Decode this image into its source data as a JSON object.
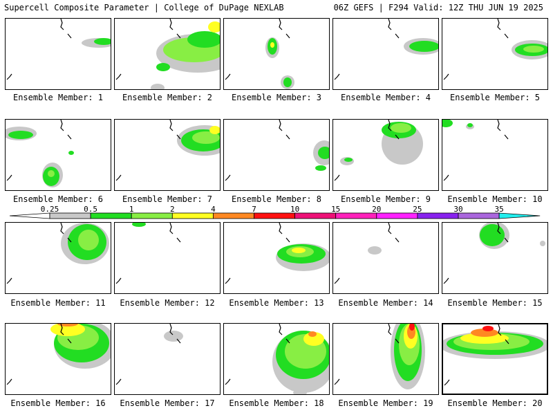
{
  "header": {
    "left": "Supercell Composite Parameter | College of DuPage NEXLAB",
    "right": "06Z GEFS | F294 Valid: 12Z THU JUN 19 2025"
  },
  "members": [
    {
      "label": "Ensemble Member: 1"
    },
    {
      "label": "Ensemble Member: 2"
    },
    {
      "label": "Ensemble Member: 3"
    },
    {
      "label": "Ensemble Member: 4"
    },
    {
      "label": "Ensemble Member: 5"
    },
    {
      "label": "Ensemble Member: 6"
    },
    {
      "label": "Ensemble Member: 7"
    },
    {
      "label": "Ensemble Member: 8"
    },
    {
      "label": "Ensemble Member: 9"
    },
    {
      "label": "Ensemble Member: 10"
    },
    {
      "label": "Ensemble Member: 11"
    },
    {
      "label": "Ensemble Member: 12"
    },
    {
      "label": "Ensemble Member: 13"
    },
    {
      "label": "Ensemble Member: 14"
    },
    {
      "label": "Ensemble Member: 15"
    },
    {
      "label": "Ensemble Member: 16"
    },
    {
      "label": "Ensemble Member: 17"
    },
    {
      "label": "Ensemble Member: 18"
    },
    {
      "label": "Ensemble Member: 19"
    },
    {
      "label": "Ensemble Member: 20"
    }
  ],
  "colorbar": {
    "ticks": [
      "0.25",
      "0.5",
      "1",
      "2",
      "4",
      "7",
      "10",
      "15",
      "20",
      "25",
      "30",
      "35"
    ],
    "colors": [
      "#c8c8c8",
      "#22dd22",
      "#88ee44",
      "#ffff22",
      "#ff8822",
      "#ff1111",
      "#ee1177",
      "#ff22bb",
      "#ff22ff",
      "#8822ee",
      "#aa66dd",
      "#22eeee"
    ]
  }
}
